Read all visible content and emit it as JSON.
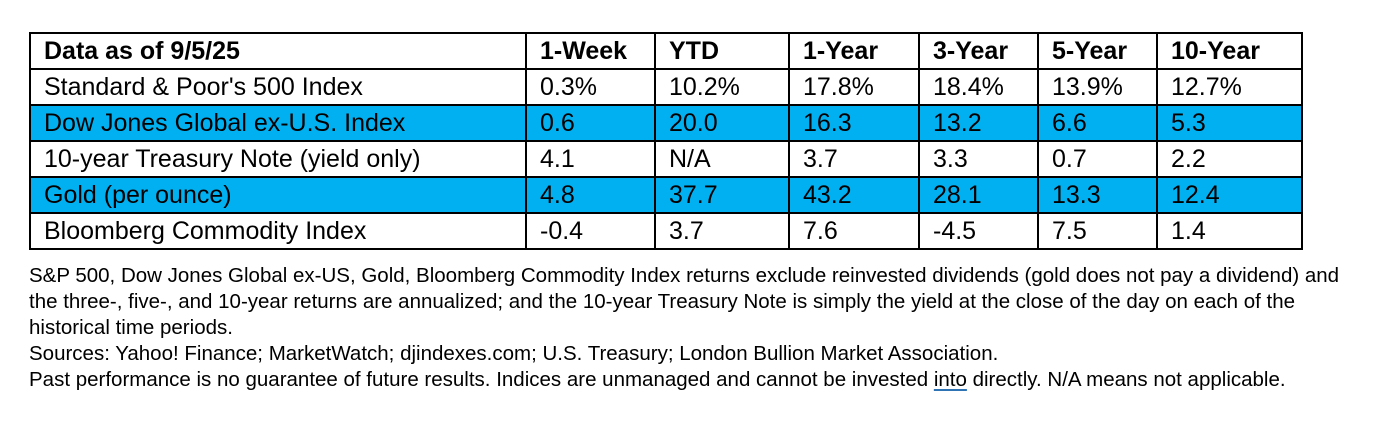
{
  "table": {
    "header": [
      "Data as of 9/5/25",
      "1-Week",
      "YTD",
      "1-Year",
      "3-Year",
      "5-Year",
      "10-Year"
    ],
    "rows": [
      {
        "name": "Standard & Poor's 500 Index",
        "values": [
          "0.3%",
          "10.2%",
          "17.8%",
          "18.4%",
          "13.9%",
          "12.7%"
        ],
        "highlight": false
      },
      {
        "name": "Dow Jones Global ex-U.S. Index",
        "values": [
          "0.6",
          "20.0",
          "16.3",
          "13.2",
          "6.6",
          "5.3"
        ],
        "highlight": true
      },
      {
        "name": "10-year Treasury Note (yield only)",
        "values": [
          "4.1",
          "N/A",
          "3.7",
          "3.3",
          "0.7",
          "2.2"
        ],
        "highlight": false
      },
      {
        "name": "Gold (per ounce)",
        "values": [
          "4.8",
          "37.7",
          "43.2",
          "28.1",
          "13.3",
          "12.4"
        ],
        "highlight": true
      },
      {
        "name": "Bloomberg Commodity Index",
        "values": [
          "-0.4",
          "3.7",
          "7.6",
          "-4.5",
          "7.5",
          "1.4"
        ],
        "highlight": false
      }
    ],
    "highlight_color": "#00b0f0"
  },
  "notes": {
    "methodology": "S&P 500, Dow Jones Global ex-US, Gold, Bloomberg Commodity Index returns exclude reinvested dividends (gold does not pay a dividend) and the three-, five-, and 10-year returns are annualized; and the 10-year Treasury Note is simply the yield at the close of the day on each of the historical time periods.",
    "sources": "Sources: Yahoo! Finance; MarketWatch; djindexes.com; U.S. Treasury; London Bullion Market Association.",
    "disclaimer_before": "Past performance is no guarantee of future results. Indices are unmanaged and cannot be invested ",
    "disclaimer_link": "into",
    "disclaimer_after": " directly. N/A means not applicable."
  }
}
